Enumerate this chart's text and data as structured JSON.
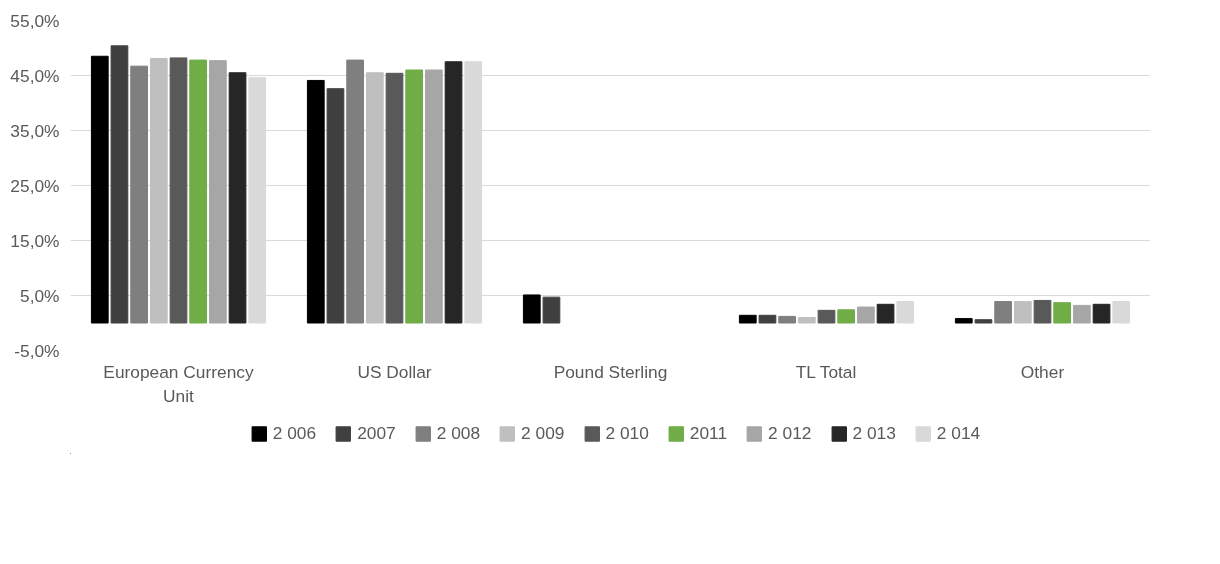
{
  "chart_data": {
    "type": "bar",
    "categories": [
      "European Currency Unit",
      "US Dollar",
      "Pound Sterling",
      "TL Total",
      "Other"
    ],
    "ylim": [
      -5,
      55
    ],
    "yticks": [
      {
        "value": -5,
        "label": "-5,0%"
      },
      {
        "value": 5,
        "label": "5,0%"
      },
      {
        "value": 15,
        "label": "15,0%"
      },
      {
        "value": 25,
        "label": "25,0%"
      },
      {
        "value": 35,
        "label": "35,0%"
      },
      {
        "value": 45,
        "label": "45,0%"
      },
      {
        "value": 55,
        "label": "55,0%"
      }
    ],
    "grid": "y",
    "legend": "bottom",
    "series": [
      {
        "name": "2 006",
        "color": "#000000",
        "values": [
          48.5,
          44.1,
          5.1,
          1.4,
          0.8
        ]
      },
      {
        "name": "2007",
        "color": "#404040",
        "values": [
          50.4,
          42.6,
          4.7,
          1.4,
          0.6
        ]
      },
      {
        "name": "2 008",
        "color": "#7f7f7f",
        "values": [
          46.7,
          47.8,
          null,
          1.2,
          3.9
        ]
      },
      {
        "name": "2 009",
        "color": "#bfbfbf",
        "values": [
          48.1,
          45.5,
          null,
          1.0,
          3.9
        ]
      },
      {
        "name": "2 010",
        "color": "#595959",
        "values": [
          48.2,
          45.4,
          null,
          2.3,
          4.1
        ]
      },
      {
        "name": "2011",
        "color": "#70ad47",
        "values": [
          47.8,
          46.0,
          null,
          2.4,
          3.7
        ]
      },
      {
        "name": "2 012",
        "color": "#a6a6a6",
        "values": [
          47.7,
          46.0,
          null,
          2.9,
          3.2
        ]
      },
      {
        "name": "2 013",
        "color": "#262626",
        "values": [
          45.5,
          47.5,
          null,
          3.4,
          3.4
        ]
      },
      {
        "name": "2 014",
        "color": "#d9d9d9",
        "values": [
          44.6,
          47.5,
          null,
          3.9,
          3.9
        ]
      }
    ]
  }
}
